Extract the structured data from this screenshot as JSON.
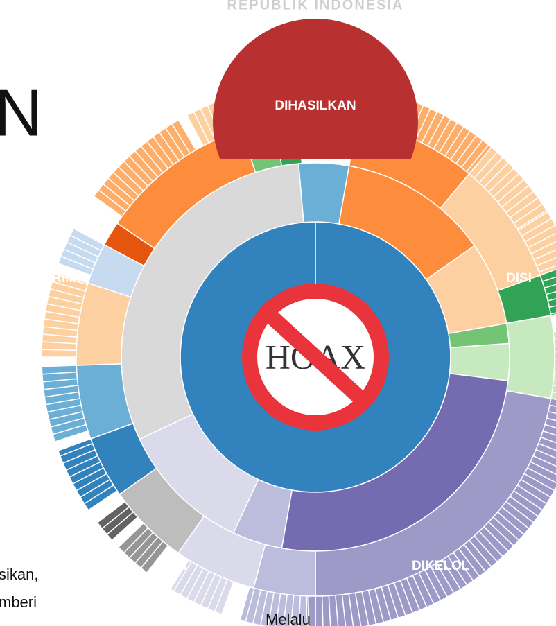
{
  "header": {
    "emblem_text": "REPUBLIK INDONESIA",
    "title_fragment": "N"
  },
  "sunburst": {
    "top_label": "DIHASILKAN",
    "left_label": "DITERIMA",
    "right_label": "DISI",
    "bottom_left_label": "RI",
    "bottom_right_label": "DIKELOL",
    "center_label": "HOAX"
  },
  "body_text": {
    "line_1": "sikan,",
    "line_2": "mberi",
    "line_3": "Melalu"
  }
}
